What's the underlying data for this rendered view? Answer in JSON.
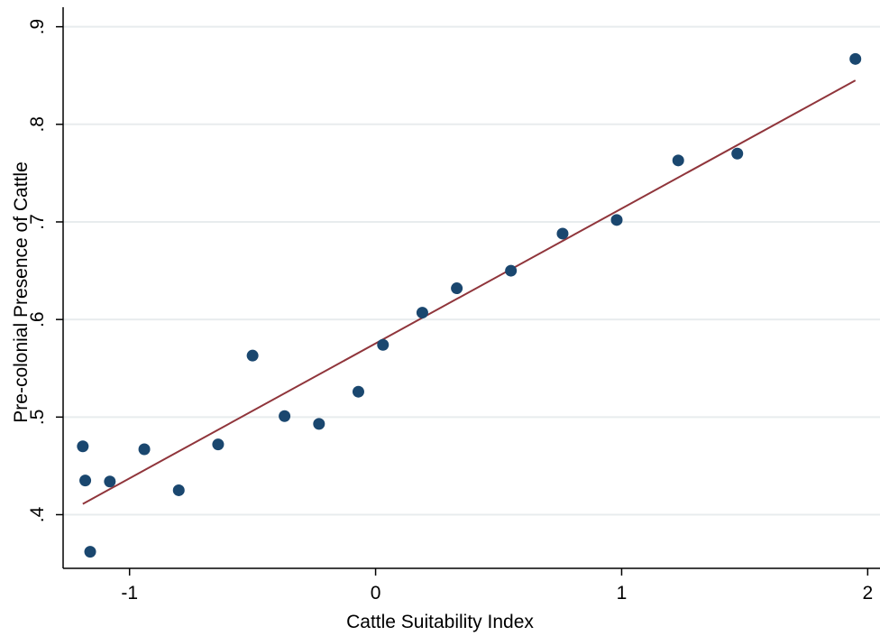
{
  "chart_data": {
    "type": "scatter",
    "title": "",
    "xlabel": "Cattle Suitability Index",
    "ylabel": "Pre-colonial Presence of Cattle",
    "xlim": [
      -1.27,
      2.05
    ],
    "ylim": [
      0.345,
      0.92
    ],
    "xticks": [
      -1,
      0,
      1,
      2
    ],
    "xtick_labels": [
      "-1",
      "0",
      "1",
      "2"
    ],
    "yticks": [
      0.4,
      0.5,
      0.6,
      0.7,
      0.8,
      0.9
    ],
    "ytick_labels": [
      ".4",
      ".5",
      ".6",
      ".7",
      ".8",
      ".9"
    ],
    "grid": "horizontal",
    "legend": "none",
    "colors": {
      "points": "#1a476f",
      "fit_line": "#90353b",
      "grid": "#e8ecee"
    },
    "points": [
      {
        "x": -1.19,
        "y": 0.47
      },
      {
        "x": -1.18,
        "y": 0.435
      },
      {
        "x": -1.16,
        "y": 0.362
      },
      {
        "x": -1.08,
        "y": 0.434
      },
      {
        "x": -0.94,
        "y": 0.467
      },
      {
        "x": -0.8,
        "y": 0.425
      },
      {
        "x": -0.64,
        "y": 0.472
      },
      {
        "x": -0.5,
        "y": 0.563
      },
      {
        "x": -0.37,
        "y": 0.501
      },
      {
        "x": -0.23,
        "y": 0.493
      },
      {
        "x": -0.07,
        "y": 0.526
      },
      {
        "x": 0.03,
        "y": 0.574
      },
      {
        "x": 0.19,
        "y": 0.607
      },
      {
        "x": 0.33,
        "y": 0.632
      },
      {
        "x": 0.55,
        "y": 0.65
      },
      {
        "x": 0.76,
        "y": 0.688
      },
      {
        "x": 0.98,
        "y": 0.702
      },
      {
        "x": 1.23,
        "y": 0.763
      },
      {
        "x": 1.47,
        "y": 0.77
      },
      {
        "x": 1.95,
        "y": 0.867
      }
    ],
    "fit_line": {
      "x": [
        -1.19,
        1.95
      ],
      "y": [
        0.411,
        0.845
      ]
    }
  }
}
